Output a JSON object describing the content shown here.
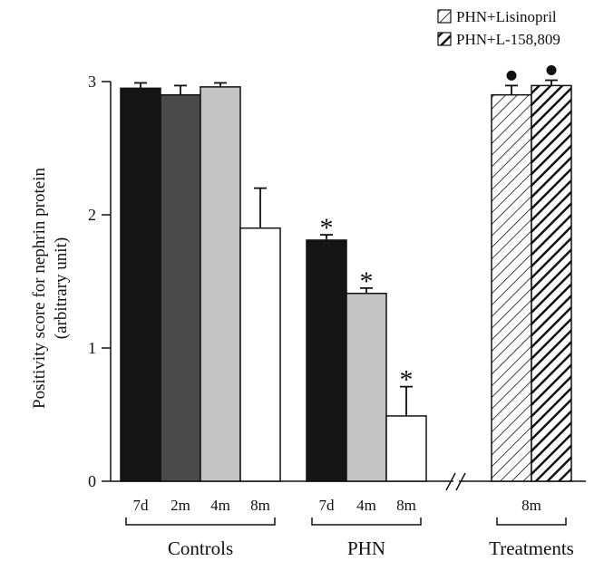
{
  "chart_data": {
    "type": "bar",
    "ylabel": [
      "Positivity score for nephrin protein",
      "(arbitrary unit)"
    ],
    "ylim": [
      0,
      3
    ],
    "yticks": [
      "0",
      "1",
      "2",
      "3"
    ],
    "axis_break": true,
    "grid": false,
    "groups": [
      {
        "name": "Controls",
        "bars": [
          {
            "label": "7d",
            "value": 2.95,
            "error": 0.04,
            "fill": "black",
            "marker": ""
          },
          {
            "label": "2m",
            "value": 2.9,
            "error": 0.07,
            "fill": "darkgray",
            "marker": ""
          },
          {
            "label": "4m",
            "value": 2.96,
            "error": 0.03,
            "fill": "lightgray",
            "marker": ""
          },
          {
            "label": "8m",
            "value": 1.9,
            "error": 0.3,
            "fill": "white",
            "marker": ""
          }
        ]
      },
      {
        "name": "PHN",
        "bars": [
          {
            "label": "7d",
            "value": 1.81,
            "error": 0.04,
            "fill": "black",
            "marker": "*"
          },
          {
            "label": "4m",
            "value": 1.41,
            "error": 0.04,
            "fill": "lightgray",
            "marker": "*"
          },
          {
            "label": "8m",
            "value": 0.49,
            "error": 0.22,
            "fill": "white",
            "marker": "*"
          }
        ]
      },
      {
        "name": "Treatments",
        "shared_label": "8m",
        "bars": [
          {
            "label": "",
            "value": 2.9,
            "error": 0.07,
            "fill": "hatch-thin",
            "marker": "●"
          },
          {
            "label": "",
            "value": 2.97,
            "error": 0.04,
            "fill": "hatch-thick",
            "marker": "●"
          }
        ]
      }
    ],
    "legend": {
      "position": "top-right",
      "entries": [
        {
          "name": "PHN+Lisinopril",
          "fill": "hatch-thin"
        },
        {
          "name": "PHN+L-158,809",
          "fill": "hatch-thick"
        }
      ]
    },
    "colors": {
      "black": "#151515",
      "darkgray": "#4a4a4a",
      "lightgray": "#c4c4c4",
      "white": "#ffffff",
      "axis": "#111111"
    }
  }
}
